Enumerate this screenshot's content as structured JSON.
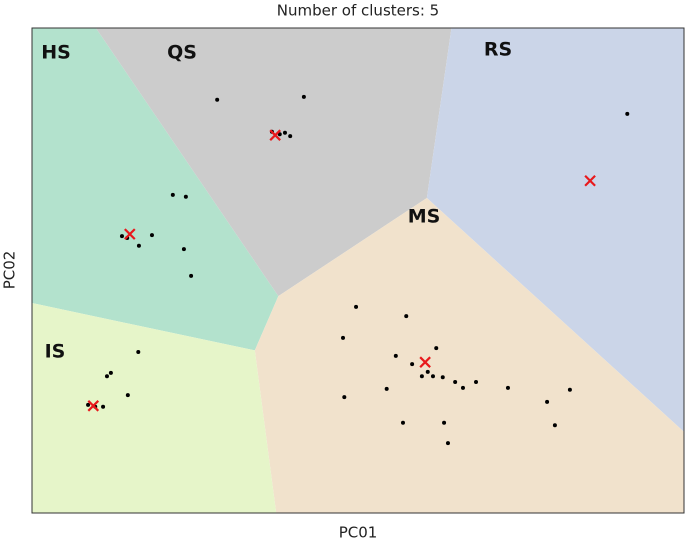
{
  "chart_data": {
    "type": "scatter",
    "title": "Number of clusters: 5",
    "xlabel": "PC01",
    "ylabel": "PC02",
    "xlim": [
      0,
      100
    ],
    "ylim": [
      0,
      100
    ],
    "points": {
      "color": "#000000",
      "x": [
        28.4,
        41.7,
        36.8,
        38.0,
        38.8,
        39.6,
        21.6,
        23.6,
        13.8,
        14.6,
        18.4,
        16.4,
        23.3,
        24.4,
        16.3,
        12.1,
        11.5,
        14.7,
        8.6,
        9.7,
        10.9,
        49.7,
        57.4,
        47.7,
        55.8,
        62.0,
        58.3,
        60.7,
        59.8,
        61.5,
        63.0,
        64.9,
        66.1,
        68.1,
        54.4,
        47.9,
        73.0,
        79.0,
        82.5,
        56.9,
        63.2,
        80.2,
        63.8,
        91.3
      ],
      "y": [
        85.2,
        85.8,
        78.6,
        78.1,
        78.4,
        77.7,
        65.6,
        65.2,
        57.1,
        56.7,
        57.3,
        55.1,
        54.4,
        48.9,
        33.2,
        28.9,
        28.2,
        24.3,
        22.3,
        21.9,
        21.9,
        42.5,
        40.6,
        36.1,
        32.4,
        34.0,
        30.7,
        29.1,
        28.2,
        28.2,
        28.0,
        27.0,
        25.8,
        27.0,
        25.6,
        23.9,
        25.8,
        22.9,
        25.4,
        18.6,
        18.6,
        18.1,
        14.4,
        82.3
      ]
    },
    "centroids": {
      "color": "#e8191c",
      "x": [
        15.0,
        37.3,
        85.6,
        60.3,
        9.4
      ],
      "y": [
        57.5,
        77.9,
        68.5,
        31.1,
        22.1
      ]
    },
    "clusters": [
      {
        "name": "HS",
        "color": "#b3e2cd"
      },
      {
        "name": "QS",
        "color": "#cccccc"
      },
      {
        "name": "RS",
        "color": "#cbd5e8"
      },
      {
        "name": "MS",
        "color": "#f1e2cc"
      },
      {
        "name": "IS",
        "color": "#e6f5c9"
      }
    ]
  }
}
